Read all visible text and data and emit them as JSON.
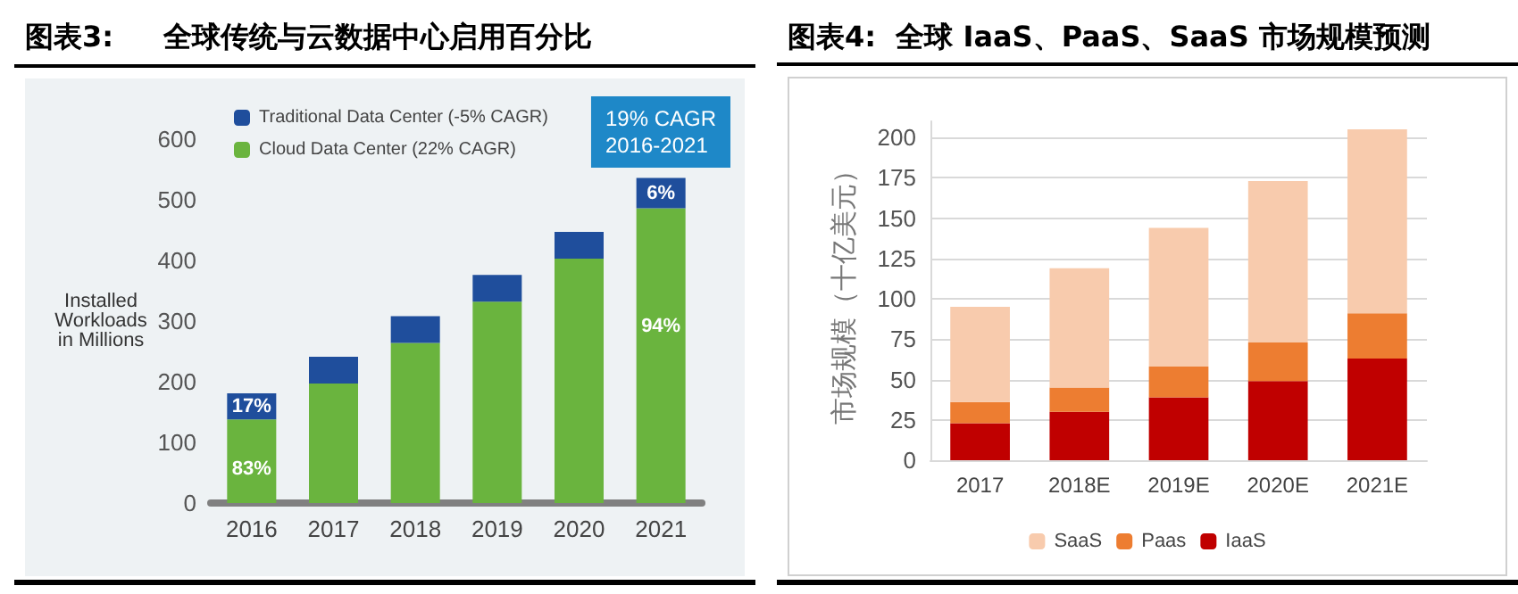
{
  "chart_data": [
    {
      "type": "bar",
      "title": "图表3:     全球传统与云数据中心启用百分比",
      "ylabel": "Installed\nWorkloads\nin Millions",
      "categories": [
        "2016",
        "2017",
        "2018",
        "2019",
        "2020",
        "2021"
      ],
      "stacked": true,
      "ylim": [
        0,
        600
      ],
      "yticks": [
        0,
        100,
        200,
        300,
        400,
        500,
        600
      ],
      "grid": false,
      "legend": "top left",
      "annotations": [
        "19% CAGR\n2016-2021",
        "83%",
        "17%",
        "94%",
        "6%"
      ],
      "series": [
        {
          "name": "Cloud Data Center (22% CAGR)",
          "color": "#6ab43e",
          "values": [
            138,
            197,
            264,
            332,
            403,
            486
          ]
        },
        {
          "name": "Traditional Data Center (-5% CAGR)",
          "color": "#1f4e9c",
          "values": [
            43,
            44,
            44,
            44,
            44,
            50
          ]
        }
      ]
    },
    {
      "type": "bar",
      "title": "图表4:  全球 IaaS、PaaS、SaaS 市场规模预测",
      "ylabel": "市场规模（十亿美元）",
      "categories": [
        "2017",
        "2018E",
        "2019E",
        "2020E",
        "2021E"
      ],
      "stacked": true,
      "ylim": [
        0,
        210
      ],
      "yticks": [
        0,
        25,
        50,
        75,
        100,
        125,
        150,
        175,
        200
      ],
      "grid": "y",
      "legend": "bottom",
      "series": [
        {
          "name": "IaaS",
          "color": "#c00000",
          "values": [
            23,
            30,
            39,
            49,
            63
          ]
        },
        {
          "name": "Paas",
          "color": "#ed7d31",
          "values": [
            13,
            15,
            19,
            24,
            28
          ]
        },
        {
          "name": "SaaS",
          "color": "#f8cbad",
          "values": [
            59,
            74,
            86,
            100,
            114
          ]
        }
      ]
    }
  ]
}
